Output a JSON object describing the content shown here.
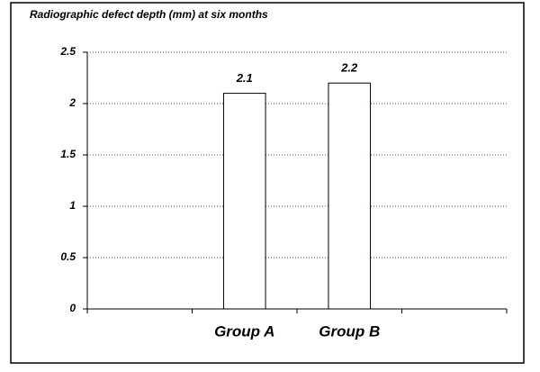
{
  "chart_data": {
    "type": "bar",
    "title": "Radiographic defect depth (mm) at six months",
    "categories": [
      null,
      "Group A",
      "Group B",
      null
    ],
    "values": [
      null,
      2.1,
      2.2,
      null
    ],
    "color": "#ffffff",
    "ylim": [
      0,
      2.5
    ],
    "yticks": [
      0,
      0.5,
      1,
      1.5,
      2,
      2.5
    ],
    "grid": true
  }
}
